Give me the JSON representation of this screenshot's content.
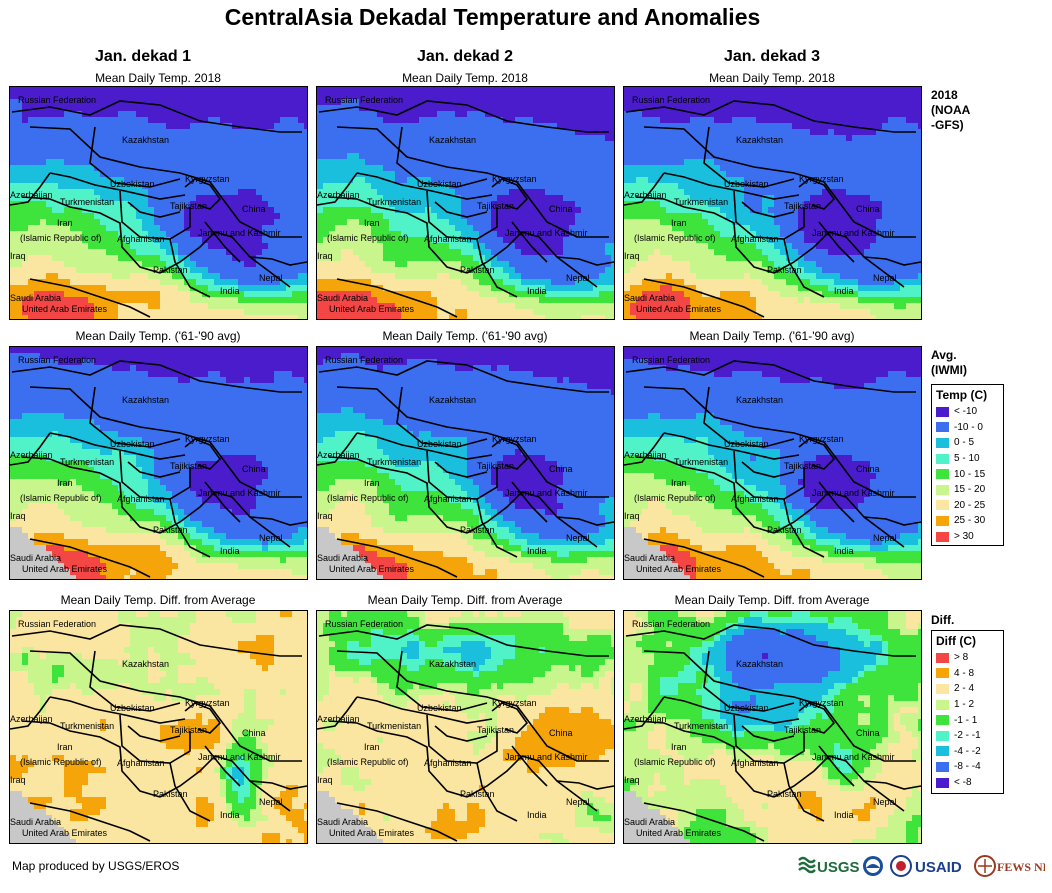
{
  "title": "CentralAsia Dekadal Temperature and Anomalies",
  "columns": [
    "Jan. dekad 1",
    "Jan. dekad 2",
    "Jan. dekad 3"
  ],
  "rows": [
    {
      "panel_title": "Mean Daily Temp. 2018",
      "label": [
        "2018",
        "(NOAA",
        "-GFS)"
      ],
      "palette": "temp",
      "variant": "current"
    },
    {
      "panel_title": "Mean Daily Temp. ('61-'90 avg)",
      "label": [
        "Avg.",
        "(IWMI)"
      ],
      "palette": "temp",
      "variant": "avg"
    },
    {
      "panel_title": "Mean Daily Temp. Diff. from Average",
      "label": [
        "Diff."
      ],
      "palette": "diff",
      "variant": "diff"
    }
  ],
  "place_labels": {
    "russia": "Russian Federation",
    "kazakhstan": "Kazakhstan",
    "uzbekistan": "Uzbekistan",
    "kyrgyzstan": "Kyrgyzstan",
    "azerbaijan": "Azerbaijan",
    "turkmenistan": "Turkmenistan",
    "tajikistan": "Tajikistan",
    "china": "China",
    "iran": "Iran",
    "iran2": "(Islamic Republic of)",
    "afghanistan": "Afghanistan",
    "jammu": "Jammu and Kashmir",
    "iraq": "Iraq",
    "pakistan": "Pakistan",
    "nepal": "Nepal",
    "india": "India",
    "saudi": "Saudi Arabia",
    "uae": "United Arab Emirates"
  },
  "legend_temp": {
    "title": "Temp (C)",
    "items": [
      {
        "label": "< -10",
        "color": "#4a1ccc"
      },
      {
        "label": "-10 - 0",
        "color": "#3c6ef0"
      },
      {
        "label": "0 - 5",
        "color": "#19bfdc"
      },
      {
        "label": "5 - 10",
        "color": "#50f2c8"
      },
      {
        "label": "10 - 15",
        "color": "#3ee43c"
      },
      {
        "label": "15 - 20",
        "color": "#c8f58c"
      },
      {
        "label": "20 - 25",
        "color": "#fae6a0"
      },
      {
        "label": "25 - 30",
        "color": "#f5a50a"
      },
      {
        "label": "> 30",
        "color": "#f54646"
      }
    ]
  },
  "legend_diff": {
    "title": "Diff (C)",
    "items": [
      {
        "label": "> 8",
        "color": "#f54646"
      },
      {
        "label": "4 - 8",
        "color": "#f5a50a"
      },
      {
        "label": "2 - 4",
        "color": "#fae6a0"
      },
      {
        "label": "1 - 2",
        "color": "#c8f58c"
      },
      {
        "label": "-1 - 1",
        "color": "#3ee43c"
      },
      {
        "label": "-2 - -1",
        "color": "#50f2c8"
      },
      {
        "label": "-4 - -2",
        "color": "#19bfdc"
      },
      {
        "label": "-8 - -4",
        "color": "#3c6ef0"
      },
      {
        "label": "< -8",
        "color": "#4a1ccc"
      }
    ]
  },
  "footer": "Map produced by USGS/EROS",
  "logos": {
    "usgs": "USGS",
    "usaid": "USAID",
    "fewsnet": "FEWS NET"
  }
}
